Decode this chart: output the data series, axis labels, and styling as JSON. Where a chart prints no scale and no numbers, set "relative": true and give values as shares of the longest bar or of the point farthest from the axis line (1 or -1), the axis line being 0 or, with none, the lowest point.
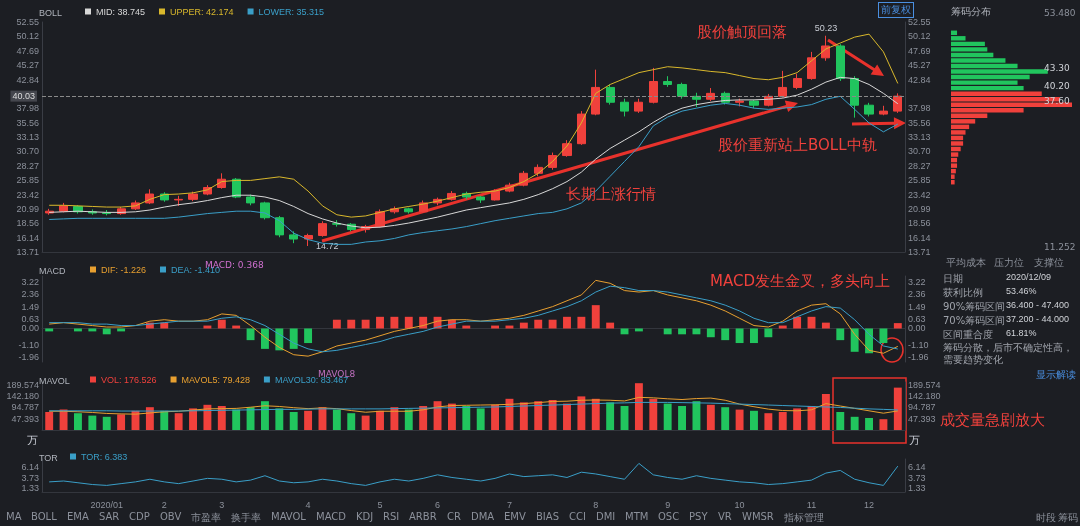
{
  "chart_data": [
    {
      "type": "candlestick",
      "title": "BOLL",
      "legend": "top left",
      "marker": "none",
      "tick_labels": "y",
      "categories": [
        null,
        null,
        null,
        null,
        "2020/01",
        null,
        null,
        null,
        "2",
        null,
        null,
        null,
        "3",
        null,
        null,
        null,
        null,
        null,
        "4",
        null,
        null,
        null,
        null,
        "5",
        null,
        null,
        null,
        "6",
        null,
        null,
        null,
        null,
        "7",
        null,
        null,
        null,
        null,
        null,
        "8",
        null,
        null,
        null,
        null,
        "9",
        null,
        null,
        null,
        null,
        "10",
        null,
        null,
        null,
        null,
        "11",
        null,
        null,
        null,
        "12",
        null,
        null
      ],
      "ohlc": [
        [
          20.3,
          21.0,
          20.0,
          20.6
        ],
        [
          20.6,
          22.0,
          20.4,
          21.5
        ],
        [
          21.4,
          21.6,
          20.2,
          20.5
        ],
        [
          20.5,
          20.9,
          20.0,
          20.3
        ],
        [
          20.3,
          20.8,
          19.9,
          20.2
        ],
        [
          20.2,
          21.3,
          20.0,
          21.0
        ],
        [
          21.0,
          22.4,
          20.8,
          22.0
        ],
        [
          22.0,
          24.3,
          21.8,
          23.5
        ],
        [
          23.5,
          23.8,
          22.2,
          22.5
        ],
        [
          22.5,
          23.2,
          21.5,
          22.6
        ],
        [
          22.6,
          23.9,
          22.3,
          23.5
        ],
        [
          23.5,
          25.0,
          23.3,
          24.6
        ],
        [
          24.6,
          27.0,
          24.4,
          26.0
        ],
        [
          26.0,
          26.2,
          22.8,
          23.0
        ],
        [
          23.0,
          23.4,
          21.6,
          22.0
        ],
        [
          22.0,
          22.2,
          19.2,
          19.5
        ],
        [
          19.5,
          19.8,
          16.2,
          16.6
        ],
        [
          16.6,
          17.2,
          15.2,
          15.9
        ],
        [
          15.9,
          16.8,
          14.72,
          16.5
        ],
        [
          16.5,
          18.9,
          16.3,
          18.5
        ],
        [
          18.5,
          19.1,
          18.0,
          18.4
        ],
        [
          18.4,
          18.6,
          17.2,
          17.5
        ],
        [
          17.5,
          18.3,
          17.0,
          18.0
        ],
        [
          18.0,
          20.9,
          17.9,
          20.5
        ],
        [
          20.5,
          21.4,
          20.2,
          21.0
        ],
        [
          21.0,
          21.2,
          20.2,
          20.5
        ],
        [
          20.5,
          22.4,
          20.4,
          22.0
        ],
        [
          22.0,
          22.9,
          21.6,
          22.6
        ],
        [
          22.6,
          24.0,
          22.4,
          23.6
        ],
        [
          23.6,
          23.9,
          22.6,
          23.0
        ],
        [
          23.0,
          23.2,
          22.0,
          22.5
        ],
        [
          22.5,
          24.3,
          22.4,
          24.0
        ],
        [
          24.0,
          25.4,
          23.8,
          25.0
        ],
        [
          25.0,
          27.4,
          24.8,
          27.0
        ],
        [
          27.0,
          28.5,
          26.5,
          28.0
        ],
        [
          28.0,
          30.5,
          27.6,
          30.0
        ],
        [
          30.0,
          32.6,
          29.8,
          32.0
        ],
        [
          32.0,
          37.5,
          31.8,
          37.0
        ],
        [
          37.0,
          44.5,
          36.8,
          41.5
        ],
        [
          41.5,
          42.0,
          38.6,
          39.0
        ],
        [
          39.0,
          39.6,
          36.6,
          37.5
        ],
        [
          37.5,
          39.6,
          37.2,
          39.0
        ],
        [
          39.0,
          44.8,
          38.8,
          42.5
        ],
        [
          42.5,
          43.4,
          41.6,
          42.0
        ],
        [
          42.0,
          42.3,
          39.6,
          40.0
        ],
        [
          40.0,
          40.6,
          38.2,
          39.5
        ],
        [
          39.5,
          41.4,
          39.2,
          40.5
        ],
        [
          40.5,
          40.8,
          38.6,
          39.0
        ],
        [
          39.0,
          39.6,
          38.3,
          39.2
        ],
        [
          39.2,
          39.4,
          38.0,
          38.5
        ],
        [
          38.5,
          40.4,
          38.3,
          40.0
        ],
        [
          40.0,
          44.3,
          39.8,
          41.5
        ],
        [
          41.5,
          43.8,
          41.2,
          43.0
        ],
        [
          43.0,
          47.5,
          42.8,
          46.5
        ],
        [
          46.5,
          50.23,
          46.0,
          48.5
        ],
        [
          48.5,
          48.8,
          42.6,
          43.0
        ],
        [
          43.0,
          43.4,
          36.4,
          38.5
        ],
        [
          38.5,
          38.9,
          36.6,
          37.0
        ],
        [
          37.0,
          38.4,
          36.8,
          37.5
        ],
        [
          37.5,
          40.5,
          37.2,
          40.03
        ]
      ],
      "colors": [
        "#f0413c",
        "#f0413c",
        "#21c55e",
        "#21c55e",
        "#21c55e",
        "#f0413c",
        "#f0413c",
        "#f0413c",
        "#21c55e",
        "#f0413c",
        "#f0413c",
        "#f0413c",
        "#f0413c",
        "#21c55e",
        "#21c55e",
        "#21c55e",
        "#21c55e",
        "#21c55e",
        "#f0413c",
        "#f0413c",
        "#21c55e",
        "#21c55e",
        "#f0413c",
        "#f0413c",
        "#f0413c",
        "#21c55e",
        "#f0413c",
        "#f0413c",
        "#f0413c",
        "#21c55e",
        "#21c55e",
        "#f0413c",
        "#f0413c",
        "#f0413c",
        "#f0413c",
        "#f0413c",
        "#f0413c",
        "#f0413c",
        "#f0413c",
        "#21c55e",
        "#21c55e",
        "#f0413c",
        "#f0413c",
        "#21c55e",
        "#21c55e",
        "#21c55e",
        "#f0413c",
        "#21c55e",
        "#f0413c",
        "#21c55e",
        "#f0413c",
        "#f0413c",
        "#f0413c",
        "#f0413c",
        "#f0413c",
        "#21c55e",
        "#21c55e",
        "#21c55e",
        "#f0413c",
        "#f0413c"
      ],
      "series": [
        {
          "type": "line",
          "name": "MID: 38.745",
          "color": "#d8d8d8",
          "values": [
            20.4,
            20.5,
            20.6,
            20.5,
            20.4,
            20.4,
            20.5,
            20.8,
            21.3,
            21.7,
            22.0,
            22.4,
            22.9,
            23.3,
            23.3,
            23.0,
            22.4,
            21.4,
            20.2,
            19.3,
            18.6,
            18.1,
            17.8,
            17.9,
            18.2,
            18.6,
            19.1,
            19.6,
            20.2,
            20.8,
            21.2,
            21.6,
            22.0,
            22.6,
            23.4,
            24.4,
            25.6,
            27.2,
            29.4,
            31.2,
            32.6,
            34.0,
            35.6,
            37.0,
            38.0,
            38.6,
            39.0,
            39.3,
            39.4,
            39.4,
            39.5,
            39.7,
            40.2,
            41.2,
            42.4,
            43.2,
            43.0,
            42.0,
            40.5,
            38.745
          ]
        },
        {
          "type": "line",
          "name": "UPPER: 42.174",
          "color": "#d9b82c",
          "values": [
            21.6,
            21.6,
            21.5,
            21.4,
            21.3,
            21.3,
            21.5,
            22.6,
            23.4,
            23.5,
            23.7,
            24.2,
            25.6,
            25.8,
            25.8,
            26.1,
            26.4,
            26.0,
            24.0,
            21.5,
            20.0,
            19.6,
            19.8,
            20.4,
            21.0,
            21.4,
            21.8,
            22.3,
            22.9,
            23.5,
            23.8,
            24.0,
            24.6,
            25.6,
            27.0,
            29.0,
            31.6,
            35.5,
            40.5,
            42.0,
            43.0,
            44.0,
            44.5,
            45.0,
            44.8,
            44.5,
            44.2,
            44.0,
            43.5,
            43.0,
            42.8,
            43.2,
            44.0,
            46.0,
            48.0,
            49.0,
            50.0,
            50.5,
            47.5,
            42.174
          ]
        },
        {
          "type": "line",
          "name": "LOWER: 35.315",
          "color": "#3a9fc8",
          "values": [
            19.2,
            19.3,
            19.4,
            19.4,
            19.4,
            19.4,
            19.4,
            19.4,
            19.4,
            19.6,
            19.9,
            20.2,
            20.4,
            20.6,
            20.6,
            20.3,
            19.0,
            16.9,
            15.8,
            15.2,
            15.0,
            15.0,
            15.4,
            15.6,
            16.0,
            16.6,
            17.0,
            17.3,
            17.6,
            18.0,
            18.5,
            19.0,
            19.4,
            19.8,
            20.2,
            20.4,
            21.0,
            22.0,
            24.0,
            26.5,
            29.0,
            31.5,
            35.0,
            36.5,
            37.5,
            38.0,
            38.5,
            38.8,
            38.5,
            38.0,
            37.8,
            38.0,
            38.2,
            38.6,
            39.5,
            40.0,
            37.8,
            35.5,
            34.0,
            35.315
          ]
        }
      ],
      "ylim": [
        13.71,
        52.55
      ],
      "yticks": [
        52.55,
        50.12,
        47.69,
        45.27,
        42.84,
        37.98,
        35.56,
        33.13,
        {
          "value": 30.7,
          "label": "30.70"
        },
        28.27,
        25.85,
        23.42,
        20.99,
        18.56,
        16.14,
        13.71
      ],
      "y2lim": [
        13.71,
        52.55
      ],
      "y2ticks": [
        52.55,
        50.12,
        47.69,
        45.27,
        42.84,
        37.98,
        35.56,
        33.13,
        {
          "value": 30.7,
          "label": "30.70"
        },
        28.27,
        25.85,
        23.42,
        20.99,
        18.56,
        16.14,
        13.71
      ],
      "ref_lines": [
        {
          "axis": "y",
          "value": 40.03,
          "label": "40.03",
          "color": "#8a8a8a",
          "line_style": "dashed"
        }
      ],
      "annotations": [
        "前复权",
        "股价触顶回落",
        "长期上涨行情",
        "股价重新站上BOLL中轨",
        {
          "text": "50.23",
          "y": 50.23
        },
        {
          "text": "14.72",
          "y": 14.72
        }
      ]
    },
    {
      "type": "bar",
      "title": "MACD",
      "legend": "top left",
      "marker": "none",
      "tick_labels": "y",
      "categories": [
        null,
        null,
        null,
        null,
        "2020/01",
        null,
        null,
        null,
        "2",
        null,
        null,
        null,
        "3",
        null,
        null,
        null,
        null,
        null,
        "4",
        null,
        null,
        null,
        null,
        "5",
        null,
        null,
        null,
        "6",
        null,
        null,
        null,
        null,
        "7",
        null,
        null,
        null,
        null,
        null,
        "8",
        null,
        null,
        null,
        null,
        "9",
        null,
        null,
        null,
        null,
        "10",
        null,
        null,
        null,
        null,
        "11",
        null,
        null,
        null,
        "12",
        null,
        null
      ],
      "series": [
        {
          "type": "bar",
          "color": "#d070d0",
          "values": [
            -0.2,
            0,
            -0.2,
            -0.2,
            -0.4,
            -0.2,
            0,
            0.4,
            0.4,
            0,
            0,
            0.2,
            0.6,
            0.2,
            -0.8,
            -1.4,
            -1.5,
            -1.4,
            -1.0,
            0,
            0.6,
            0.6,
            0.6,
            0.8,
            0.8,
            0.8,
            0.8,
            0.8,
            0.6,
            0.2,
            0,
            0.2,
            0.2,
            0.4,
            0.6,
            0.6,
            0.8,
            0.8,
            1.6,
            0.4,
            -0.4,
            -0.2,
            0,
            -0.4,
            -0.4,
            -0.4,
            -0.6,
            -0.8,
            -1.0,
            -1.0,
            -0.6,
            0.2,
            0.8,
            0.8,
            0.4,
            -0.8,
            -1.6,
            -1.7,
            -1.0,
            0.368
          ],
          "colors": [
            "#21c55e",
            "#21c55e",
            "#21c55e",
            "#21c55e",
            "#21c55e",
            "#21c55e",
            "#21c55e",
            "#f0413c",
            "#f0413c",
            "#f0413c",
            "#f0413c",
            "#f0413c",
            "#f0413c",
            "#f0413c",
            "#21c55e",
            "#21c55e",
            "#21c55e",
            "#21c55e",
            "#21c55e",
            "#21c55e",
            "#f0413c",
            "#f0413c",
            "#f0413c",
            "#f0413c",
            "#f0413c",
            "#f0413c",
            "#f0413c",
            "#f0413c",
            "#f0413c",
            "#f0413c",
            "#f0413c",
            "#f0413c",
            "#f0413c",
            "#f0413c",
            "#f0413c",
            "#f0413c",
            "#f0413c",
            "#f0413c",
            "#f0413c",
            "#f0413c",
            "#21c55e",
            "#21c55e",
            "#21c55e",
            "#21c55e",
            "#21c55e",
            "#21c55e",
            "#21c55e",
            "#21c55e",
            "#21c55e",
            "#21c55e",
            "#21c55e",
            "#f0413c",
            "#f0413c",
            "#f0413c",
            "#f0413c",
            "#21c55e",
            "#21c55e",
            "#21c55e",
            "#21c55e",
            "#f0413c"
          ]
        },
        {
          "type": "line",
          "name": "DIF: -1.226",
          "color": "#e8a030",
          "values": [
            0.3,
            0.4,
            0.3,
            0.2,
            0.1,
            0.1,
            0.2,
            0.5,
            0.6,
            0.5,
            0.5,
            0.6,
            1.0,
            0.9,
            0.2,
            -0.6,
            -1.3,
            -1.8,
            -1.9,
            -1.6,
            -1.2,
            -1.0,
            -0.8,
            -0.5,
            -0.2,
            0.0,
            0.2,
            0.5,
            0.6,
            0.6,
            0.5,
            0.6,
            0.7,
            0.9,
            1.2,
            1.5,
            1.9,
            2.3,
            3.3,
            3.1,
            2.6,
            2.5,
            2.6,
            2.3,
            2.1,
            1.9,
            1.6,
            1.2,
            0.7,
            0.2,
            0.1,
            0.5,
            1.2,
            1.6,
            1.7,
            1.0,
            -0.4,
            -1.5,
            -1.7,
            -1.226
          ]
        },
        {
          "type": "line",
          "name": "DEA: -1.410",
          "color": "#3a9fc8",
          "values": [
            0.4,
            0.4,
            0.4,
            0.3,
            0.3,
            0.2,
            0.2,
            0.3,
            0.4,
            0.5,
            0.5,
            0.5,
            0.7,
            0.8,
            0.6,
            0.2,
            -0.4,
            -1.0,
            -1.4,
            -1.6,
            -1.5,
            -1.3,
            -1.1,
            -0.9,
            -0.6,
            -0.4,
            -0.2,
            0.1,
            0.3,
            0.5,
            0.5,
            0.5,
            0.6,
            0.7,
            0.9,
            1.2,
            1.5,
            1.9,
            2.5,
            2.9,
            2.8,
            2.6,
            2.6,
            2.5,
            2.3,
            2.1,
            1.9,
            1.6,
            1.2,
            0.7,
            0.4,
            0.4,
            0.8,
            1.2,
            1.5,
            1.4,
            0.6,
            -0.4,
            -1.2,
            -1.41
          ]
        }
      ],
      "ylim": [
        -2.3,
        3.6
      ],
      "yticks": [
        3.22,
        2.36,
        1.49,
        0.63,
        {
          "value": 0,
          "label": "0.00"
        },
        {
          "value": -1.1,
          "label": "-1.10"
        },
        -1.96
      ],
      "y2lim": [
        -2.3,
        3.6
      ],
      "y2ticks": [
        3.22,
        2.36,
        1.49,
        0.63,
        {
          "value": 0,
          "label": "0.00"
        },
        {
          "value": -1.1,
          "label": "-1.10"
        },
        -1.96
      ],
      "annotations": [
        "MACD发生金叉，多头向上",
        "MACD: 0.368"
      ]
    },
    {
      "type": "bar",
      "title": "MAVOL",
      "legend": "top left",
      "marker": "none",
      "tick_labels": "y",
      "ylabel": "万",
      "y2label": "万",
      "categories": [
        null,
        null,
        null,
        null,
        "2020/01",
        null,
        null,
        null,
        "2",
        null,
        null,
        null,
        "3",
        null,
        null,
        null,
        null,
        null,
        "4",
        null,
        null,
        null,
        null,
        "5",
        null,
        null,
        null,
        "6",
        null,
        null,
        null,
        null,
        "7",
        null,
        null,
        null,
        null,
        null,
        "8",
        null,
        null,
        null,
        null,
        "9",
        null,
        null,
        null,
        null,
        "10",
        null,
        null,
        null,
        null,
        "11",
        null,
        null,
        null,
        "12",
        null,
        null
      ],
      "series": [
        {
          "type": "bar",
          "name": "VOL: 176.526",
          "color": "#f0413c",
          "values": [
            75,
            85,
            70,
            60,
            55,
            65,
            80,
            95,
            80,
            70,
            90,
            105,
            100,
            85,
            95,
            120,
            90,
            75,
            80,
            95,
            85,
            70,
            60,
            80,
            95,
            85,
            100,
            120,
            110,
            100,
            90,
            105,
            130,
            115,
            120,
            125,
            110,
            140,
            130,
            115,
            100,
            195,
            130,
            110,
            100,
            120,
            105,
            95,
            85,
            80,
            70,
            75,
            90,
            100,
            150,
            75,
            55,
            50,
            45,
            176.526
          ],
          "colors": [
            "#f0413c",
            "#f0413c",
            "#21c55e",
            "#21c55e",
            "#21c55e",
            "#f0413c",
            "#f0413c",
            "#f0413c",
            "#21c55e",
            "#f0413c",
            "#f0413c",
            "#f0413c",
            "#f0413c",
            "#21c55e",
            "#21c55e",
            "#21c55e",
            "#21c55e",
            "#21c55e",
            "#f0413c",
            "#f0413c",
            "#21c55e",
            "#21c55e",
            "#f0413c",
            "#f0413c",
            "#f0413c",
            "#21c55e",
            "#f0413c",
            "#f0413c",
            "#f0413c",
            "#21c55e",
            "#21c55e",
            "#f0413c",
            "#f0413c",
            "#f0413c",
            "#f0413c",
            "#f0413c",
            "#f0413c",
            "#f0413c",
            "#f0413c",
            "#21c55e",
            "#21c55e",
            "#f0413c",
            "#f0413c",
            "#21c55e",
            "#21c55e",
            "#21c55e",
            "#f0413c",
            "#21c55e",
            "#f0413c",
            "#21c55e",
            "#f0413c",
            "#f0413c",
            "#f0413c",
            "#f0413c",
            "#f0413c",
            "#21c55e",
            "#21c55e",
            "#21c55e",
            "#f0413c",
            "#f0413c"
          ]
        },
        {
          "type": "line",
          "name": "MAVOL5: 79.428",
          "color": "#e8a030",
          "values": [
            78,
            78,
            76,
            73,
            69,
            67,
            66,
            71,
            76,
            78,
            83,
            88,
            89,
            90,
            95,
            101,
            98,
            93,
            89,
            92,
            89,
            81,
            74,
            78,
            78,
            78,
            84,
            96,
            102,
            103,
            104,
            105,
            107,
            110,
            114,
            119,
            120,
            124,
            125,
            124,
            121,
            136,
            134,
            130,
            127,
            131,
            133,
            124,
            108,
            97,
            87,
            81,
            80,
            84,
            110,
            100,
            90,
            80,
            70,
            79.428
          ]
        },
        {
          "type": "line",
          "name": "MAVOL30: 83.467",
          "color": "#3a9fc8",
          "values": [
            80,
            80,
            80,
            80,
            80,
            79,
            79,
            79,
            79,
            79,
            80,
            81,
            82,
            83,
            84,
            85,
            86,
            86,
            87,
            88,
            88,
            88,
            88,
            88,
            89,
            90,
            91,
            92,
            93,
            94,
            95,
            96,
            98,
            100,
            102,
            104,
            106,
            108,
            110,
            112,
            113,
            115,
            115,
            115,
            114,
            113,
            112,
            110,
            108,
            106,
            104,
            102,
            100,
            98,
            96,
            94,
            91,
            88,
            86,
            83.467
          ]
        }
      ],
      "ylim": [
        0,
        200
      ],
      "yticks": [
        {
          "value": 189.574,
          "label": "189.574"
        },
        {
          "value": 142.18,
          "label": "142.180"
        },
        94.787,
        47.393
      ],
      "y2lim": [
        0,
        200
      ],
      "y2ticks": [
        {
          "value": 189.574,
          "label": "189.574"
        },
        {
          "value": 142.18,
          "label": "142.180"
        },
        94.787,
        47.393
      ],
      "annotations": [
        "MAVOL8",
        "成交量急剧放大"
      ]
    },
    {
      "type": "line",
      "title": "TOR",
      "legend": "top left",
      "marker": "none",
      "categories": [
        null,
        null,
        null,
        null,
        "2020/01",
        null,
        null,
        null,
        "2",
        null,
        null,
        null,
        "3",
        null,
        null,
        null,
        null,
        null,
        "4",
        null,
        null,
        null,
        null,
        "5",
        null,
        null,
        null,
        "6",
        null,
        null,
        null,
        null,
        "7",
        null,
        null,
        null,
        null,
        null,
        "8",
        null,
        null,
        null,
        null,
        "9",
        null,
        null,
        null,
        null,
        "10",
        null,
        null,
        null,
        null,
        "11",
        null,
        null,
        null,
        "12",
        null,
        null
      ],
      "series": [
        {
          "name": "TOR: 6.383",
          "color": "#3a9fc8",
          "values": [
            2.8,
            3.0,
            2.6,
            2.2,
            2.0,
            2.4,
            2.8,
            3.4,
            2.8,
            2.4,
            3.0,
            3.6,
            3.4,
            2.8,
            3.2,
            4.2,
            3.0,
            2.6,
            2.8,
            3.4,
            3.0,
            2.4,
            2.0,
            2.8,
            3.4,
            3.0,
            3.6,
            4.4,
            3.8,
            3.4,
            3.0,
            3.6,
            4.6,
            4.0,
            4.2,
            4.4,
            3.8,
            5.0,
            4.6,
            4.0,
            3.4,
            7.0,
            4.4,
            3.8,
            3.4,
            4.2,
            3.6,
            3.2,
            2.8,
            2.6,
            2.2,
            2.4,
            2.8,
            3.2,
            4.8,
            5.4,
            3.4,
            2.6,
            2.0,
            6.383
          ]
        }
      ],
      "ylim": [
        0.5,
        8
      ],
      "yticks": [
        6.14,
        3.73,
        1.33
      ],
      "y2lim": [
        0.5,
        8
      ],
      "y2ticks": [
        6.14,
        3.73,
        1.33
      ],
      "annotations": [
        "MA",
        "BOLL",
        "EMA",
        "SAR",
        "CDP",
        "OBV",
        "市盈率",
        "换手率",
        "MAVOL",
        "MACD",
        "KDJ",
        "RSI",
        "ARBR",
        "CR",
        "DMA",
        "EMV",
        "BIAS",
        "CCI",
        "DMI",
        "MTM",
        "OSC",
        "PSY",
        "VR",
        "WMSR",
        "指标管理",
        "时段",
        "筹码"
      ]
    },
    {
      "type": "bar",
      "title": "筹码分布",
      "orientation": "horizontal",
      "relative": true,
      "categories": [
        null,
        null,
        null,
        null,
        null,
        null,
        null,
        null,
        null,
        null,
        null,
        null,
        null,
        null,
        null,
        null,
        null,
        null,
        null,
        null,
        null,
        null,
        null,
        null,
        null,
        null,
        null,
        null
      ],
      "values": [
        0.05,
        0.12,
        0.28,
        0.3,
        0.35,
        0.45,
        0.55,
        0.8,
        0.65,
        0.55,
        0.6,
        0.75,
        0.9,
        1.0,
        0.6,
        0.3,
        0.2,
        0.15,
        0.12,
        0.1,
        0.1,
        0.08,
        0.06,
        0.05,
        0.05,
        0.04,
        0.03,
        0.03
      ],
      "colors": [
        "#21c55e",
        "#21c55e",
        "#21c55e",
        "#21c55e",
        "#21c55e",
        "#21c55e",
        "#21c55e",
        "#21c55e",
        "#21c55e",
        "#21c55e",
        "#21c55e",
        "#f0413c",
        "#f0413c",
        "#f0413c",
        "#f0413c",
        "#f0413c",
        "#f0413c",
        "#f0413c",
        "#f0413c",
        "#f0413c",
        "#f0413c",
        "#f0413c",
        "#f0413c",
        "#f0413c",
        "#f0413c",
        "#f0413c",
        "#f0413c",
        "#f0413c"
      ],
      "annotations": [
        "53.480",
        "43.30",
        "40.20",
        "37.60",
        "11.252",
        "平均成本",
        "压力位",
        "支撑位"
      ]
    },
    {
      "type": "other",
      "annotations": [
        "日期",
        "2020/12/09",
        "获利比例",
        "53.46%",
        "90%筹码区间",
        "36.400 - 47.400",
        "70%筹码区间",
        "37.200 - 44.000",
        "区间重合度",
        "61.81%",
        "筹码分散，后市不确定性高，需要趋势变化",
        "显示解读"
      ]
    }
  ]
}
